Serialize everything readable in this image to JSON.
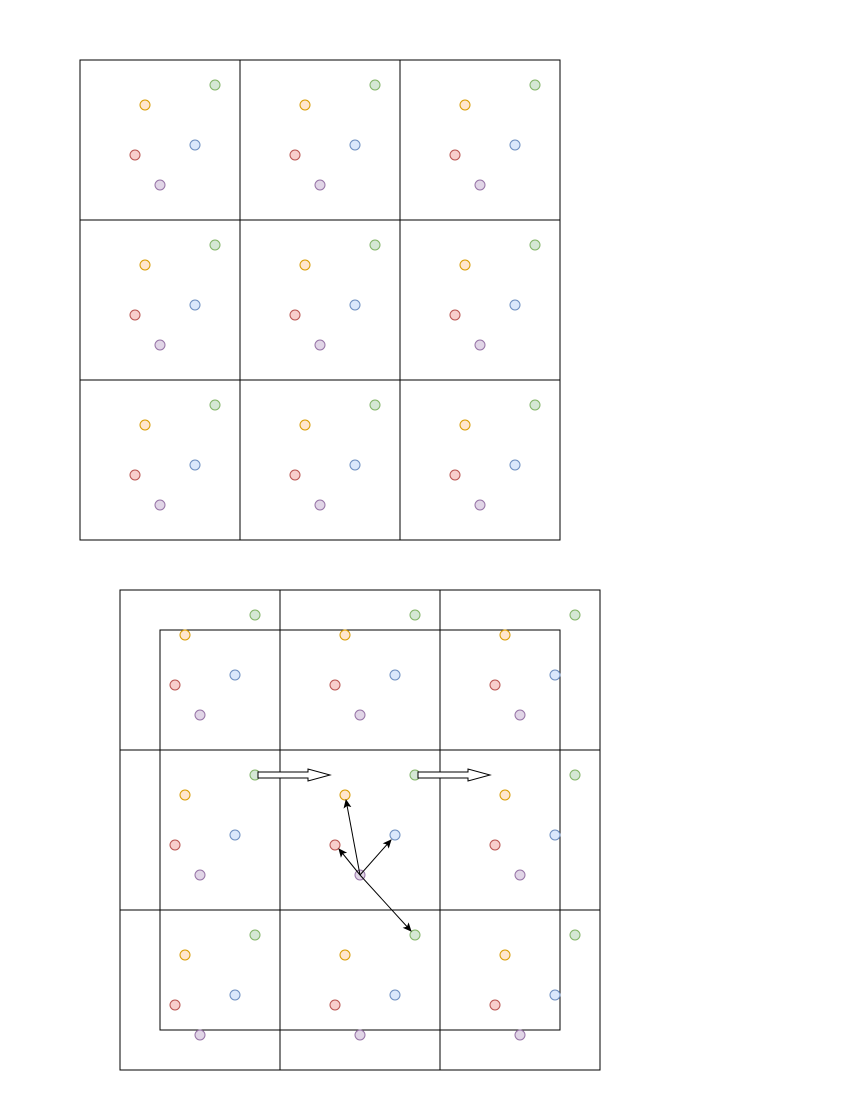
{
  "diagram": {
    "particle_colors": {
      "orange": {
        "fill": "#ffe6cc",
        "stroke": "#d79b00"
      },
      "green": {
        "fill": "#d5e8d4",
        "stroke": "#82b366"
      },
      "blue": {
        "fill": "#dae8fc",
        "stroke": "#6c8ebf"
      },
      "red": {
        "fill": "#f8cecc",
        "stroke": "#b85450"
      },
      "purple": {
        "fill": "#e1d5e7",
        "stroke": "#9673a6"
      }
    },
    "line_color": "#000000",
    "background_color": "#ffffff"
  }
}
